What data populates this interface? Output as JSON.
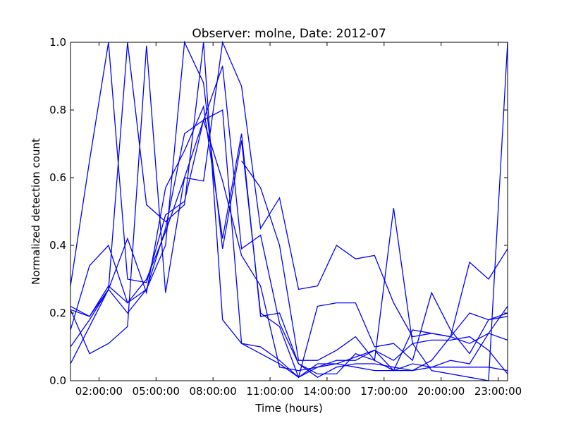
{
  "chart_data": {
    "type": "line",
    "title": "Observer: molne, Date: 2012-07",
    "xlabel": "Time (hours)",
    "ylabel": "Normalized detection count",
    "xlim": [
      0.5,
      23.5
    ],
    "ylim": [
      0.0,
      1.0
    ],
    "x_ticks": [
      {
        "x": 2,
        "label": "02:00:00"
      },
      {
        "x": 5,
        "label": "05:00:00"
      },
      {
        "x": 8,
        "label": "08:00:00"
      },
      {
        "x": 11,
        "label": "11:00:00"
      },
      {
        "x": 14,
        "label": "14:00:00"
      },
      {
        "x": 17,
        "label": "17:00:00"
      },
      {
        "x": 20,
        "label": "20:00:00"
      },
      {
        "x": 23,
        "label": "23:00:00"
      }
    ],
    "y_ticks": [
      {
        "y": 0.0,
        "label": "0.0"
      },
      {
        "y": 0.2,
        "label": "0.2"
      },
      {
        "y": 0.4,
        "label": "0.4"
      },
      {
        "y": 0.6,
        "label": "0.6"
      },
      {
        "y": 0.8,
        "label": "0.8"
      },
      {
        "y": 1.0,
        "label": "1.0"
      }
    ],
    "grid": false,
    "legend": false,
    "color": "#0000ff",
    "x": [
      0.5,
      1.5,
      2.5,
      3.5,
      4.5,
      5.5,
      6.5,
      7.5,
      8.5,
      9.5,
      10.5,
      11.5,
      12.5,
      13.5,
      14.5,
      15.5,
      16.5,
      17.5,
      18.5,
      19.5,
      20.5,
      21.5,
      22.5,
      23.5
    ],
    "series": [
      {
        "values": [
          0.28,
          0.65,
          1.0,
          0.3,
          0.29,
          0.49,
          0.53,
          0.77,
          0.93,
          0.39,
          0.43,
          0.17,
          0.05,
          0.01,
          0.04,
          0.05,
          0.05,
          0.04,
          0.03,
          0.04,
          0.04,
          0.04,
          0.04,
          0.03
        ]
      },
      {
        "values": [
          0.22,
          0.19,
          0.27,
          0.42,
          0.26,
          0.57,
          0.68,
          0.81,
          0.42,
          0.73,
          0.19,
          0.2,
          0.05,
          0.02,
          0.02,
          0.08,
          0.06,
          0.03,
          0.03,
          0.06,
          0.13,
          0.11,
          0.14,
          0.12
        ]
      },
      {
        "values": [
          0.21,
          0.08,
          0.11,
          0.16,
          0.99,
          0.26,
          0.6,
          0.59,
          1.0,
          0.87,
          0.45,
          0.54,
          0.27,
          0.28,
          0.4,
          0.36,
          0.37,
          0.23,
          0.13,
          0.14,
          0.13,
          0.35,
          0.3,
          0.39
        ]
      },
      {
        "values": [
          0.05,
          0.16,
          0.27,
          1.0,
          0.52,
          0.47,
          0.52,
          1.0,
          0.18,
          0.11,
          0.1,
          0.06,
          0.01,
          0.22,
          0.23,
          0.23,
          0.1,
          0.11,
          0.06,
          0.26,
          0.15,
          0.08,
          0.18,
          0.2
        ]
      },
      {
        "values": [
          0.1,
          0.18,
          0.27,
          0.2,
          0.27,
          0.4,
          1.0,
          0.88,
          0.39,
          0.71,
          0.2,
          0.16,
          0.01,
          0.05,
          0.05,
          0.07,
          0.09,
          0.03,
          0.15,
          0.14,
          0.13,
          0.2,
          0.18,
          0.19
        ]
      },
      {
        "values": [
          0.15,
          0.34,
          0.4,
          0.23,
          0.27,
          0.45,
          0.73,
          0.77,
          0.8,
          0.11,
          0.08,
          0.05,
          0.01,
          0.04,
          0.06,
          0.06,
          0.09,
          0.06,
          0.11,
          0.12,
          0.12,
          0.13,
          0.09,
          0.02
        ]
      },
      {
        "values": [
          null,
          null,
          null,
          null,
          null,
          null,
          null,
          null,
          null,
          0.65,
          0.57,
          0.4,
          0.06,
          0.06,
          0.09,
          0.13,
          0.06,
          0.51,
          0.11,
          0.03,
          0.02,
          0.01,
          0.0,
          1.0
        ]
      },
      {
        "values": [
          0.21,
          0.19,
          0.28,
          0.23,
          0.3,
          0.44,
          0.6,
          0.77,
          0.59,
          0.37,
          0.28,
          0.04,
          0.03,
          0.04,
          0.05,
          0.04,
          0.03,
          0.03,
          0.05,
          0.04,
          0.06,
          0.05,
          0.14,
          0.22
        ]
      }
    ]
  }
}
